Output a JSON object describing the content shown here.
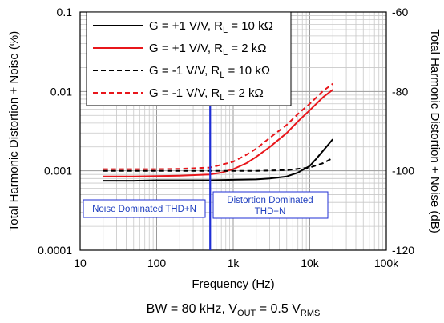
{
  "chart_data": {
    "type": "line",
    "x_axis": {
      "label": "Frequency (Hz)",
      "scale": "log",
      "range": [
        10,
        100000
      ],
      "ticks": [
        10,
        100,
        1000,
        10000,
        100000
      ],
      "tick_labels": [
        "10",
        "100",
        "1k",
        "10k",
        "100k"
      ]
    },
    "y_axis_left": {
      "label": "Total Harmonic Distortion + Noise (%)",
      "scale": "log",
      "range": [
        0.0001,
        0.1
      ],
      "ticks": [
        0.0001,
        0.001,
        0.01,
        0.1
      ],
      "tick_labels": [
        "0.0001",
        "0.001",
        "0.01",
        "0.1"
      ]
    },
    "y_axis_right": {
      "label": "Total Harmonic Distortion + Noise (dB)",
      "range": [
        -120,
        -60
      ],
      "ticks": [
        -120,
        -100,
        -80,
        -60
      ],
      "tick_labels": [
        "-120",
        "-100",
        "-80",
        "-60"
      ]
    },
    "grid": true,
    "legend_position": "top-left",
    "footer": {
      "prefix": "BW = 80 kHz, V",
      "sub1": "OUT",
      "middle": " = 0.5 V",
      "sub2": "RMS"
    },
    "series": [
      {
        "name_main": "G = +1 V/V, R",
        "name_sub": "L",
        "name_tail": " = 10 kΩ",
        "color": "#000000",
        "dash": "solid",
        "x": [
          20,
          30,
          50,
          100,
          200,
          500,
          1000,
          2000,
          3000,
          5000,
          7000,
          10000,
          12000,
          15000,
          20000
        ],
        "y": [
          0.00075,
          0.00075,
          0.00075,
          0.00076,
          0.00076,
          0.00076,
          0.00077,
          0.00078,
          0.0008,
          0.00085,
          0.00095,
          0.00115,
          0.0014,
          0.0018,
          0.0025
        ]
      },
      {
        "name_main": "G = +1 V/V, R",
        "name_sub": "L",
        "name_tail": " = 2 kΩ",
        "color": "#e8161b",
        "dash": "solid",
        "x": [
          20,
          50,
          100,
          200,
          500,
          700,
          1000,
          1500,
          2000,
          3000,
          5000,
          7000,
          10000,
          15000,
          20000
        ],
        "y": [
          0.00085,
          0.00085,
          0.00086,
          0.00087,
          0.0009,
          0.00095,
          0.00105,
          0.00125,
          0.0015,
          0.002,
          0.003,
          0.0042,
          0.0058,
          0.0085,
          0.0105
        ]
      },
      {
        "name_main": "G = -1 V/V, R",
        "name_sub": "L",
        "name_tail": " = 10 kΩ",
        "color": "#000000",
        "dash": "dashed",
        "x": [
          20,
          50,
          100,
          200,
          500,
          1000,
          2000,
          5000,
          10000,
          15000,
          20000
        ],
        "y": [
          0.001,
          0.001,
          0.001,
          0.001,
          0.001,
          0.001,
          0.001,
          0.00102,
          0.0011,
          0.00125,
          0.00145
        ]
      },
      {
        "name_main": "G = -1 V/V, R",
        "name_sub": "L",
        "name_tail": " = 2 kΩ",
        "color": "#e8161b",
        "dash": "dashed",
        "x": [
          20,
          50,
          100,
          200,
          500,
          1000,
          1500,
          2000,
          3000,
          5000,
          7000,
          10000,
          15000,
          20000
        ],
        "y": [
          0.00105,
          0.00105,
          0.00105,
          0.00106,
          0.0011,
          0.0013,
          0.0016,
          0.0019,
          0.0026,
          0.0038,
          0.0052,
          0.007,
          0.0102,
          0.0125
        ]
      }
    ],
    "annotations": {
      "marker_line": {
        "x": 500,
        "color": "#1f2fd6"
      },
      "left_box": {
        "text": "Noise Dominated THD+N"
      },
      "right_box": {
        "line1": "Distortion Dominated",
        "line2": "THD+N"
      }
    }
  }
}
